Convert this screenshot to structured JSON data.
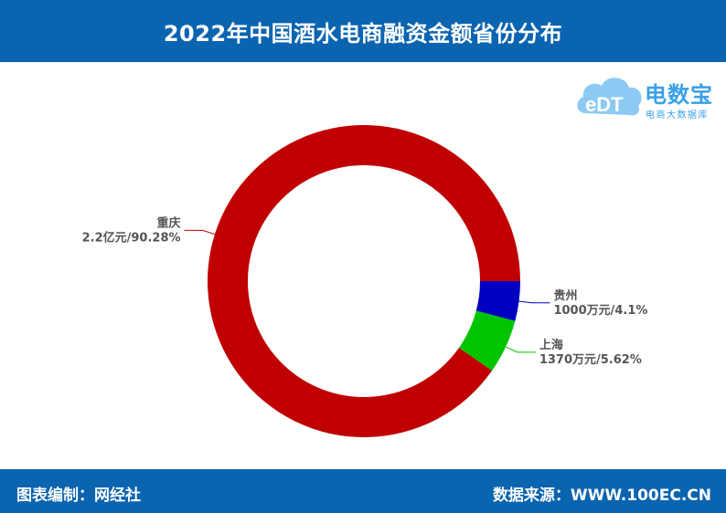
{
  "header": {
    "title": "2022年中国酒水电商融资金额省份分布"
  },
  "footer": {
    "left_text": "图表编制：网经社",
    "right_text": "数据来源：WWW.100EC.CN"
  },
  "logo": {
    "mark_text": "eDT",
    "brand": "电数宝",
    "subtitle": "电商大数据库"
  },
  "colors": {
    "header_bg": "#0a64b0",
    "chongqing": "#c00000",
    "shanghai": "#00c400",
    "guizhou": "#0000c0"
  },
  "chart_data": {
    "type": "pie",
    "style": "donut",
    "title": "2022年中国酒水电商融资金额省份分布",
    "slices": [
      {
        "name": "重庆",
        "value_text": "2.2亿元/90.28%",
        "percent": 90.28,
        "color": "#c00000"
      },
      {
        "name": "上海",
        "value_text": "1370万元/5.62%",
        "percent": 5.62,
        "color": "#00c400"
      },
      {
        "name": "贵州",
        "value_text": "1000万元/4.1%",
        "percent": 4.1,
        "color": "#0000c0"
      }
    ],
    "legend": "none",
    "labels": "outside with leader lines"
  }
}
